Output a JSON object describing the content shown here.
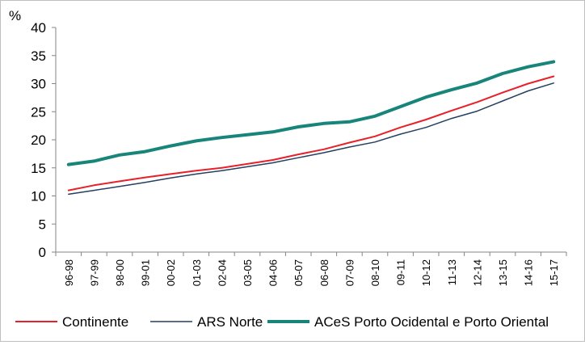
{
  "chart_data": {
    "type": "line",
    "title": "",
    "xlabel": "",
    "ylabel": "%",
    "ylim": [
      0,
      40
    ],
    "yticks": [
      "0",
      "5",
      "10",
      "15",
      "20",
      "25",
      "30",
      "35",
      "40"
    ],
    "grid": false,
    "legend_position": "bottom",
    "categories": [
      "96-98",
      "97-99",
      "98-00",
      "99-01",
      "00-02",
      "01-03",
      "02-04",
      "03-05",
      "04-06",
      "05-07",
      "06-08",
      "07-09",
      "08-10",
      "09-11",
      "10-12",
      "11-13",
      "12-14",
      "13-15",
      "14-16",
      "15-17"
    ],
    "series": [
      {
        "name": "Continente",
        "color": "#e8202a",
        "values": [
          11.0,
          11.9,
          12.6,
          13.3,
          13.9,
          14.5,
          15.0,
          15.7,
          16.4,
          17.4,
          18.3,
          19.5,
          20.6,
          22.2,
          23.6,
          25.2,
          26.7,
          28.4,
          30.0,
          31.3
        ]
      },
      {
        "name": "ARS Norte",
        "color": "#243f60",
        "values": [
          10.3,
          11.0,
          11.7,
          12.4,
          13.2,
          13.9,
          14.5,
          15.2,
          15.9,
          16.8,
          17.7,
          18.7,
          19.6,
          21.0,
          22.2,
          23.8,
          25.1,
          26.9,
          28.7,
          30.1
        ]
      },
      {
        "name": "ACeS Porto Ocidental e Porto Oriental",
        "color": "#17857a",
        "values": [
          15.6,
          16.2,
          17.3,
          17.9,
          18.9,
          19.8,
          20.4,
          20.9,
          21.4,
          22.3,
          22.9,
          23.2,
          24.2,
          25.9,
          27.6,
          28.9,
          30.1,
          31.8,
          33.0,
          33.9
        ]
      }
    ]
  }
}
